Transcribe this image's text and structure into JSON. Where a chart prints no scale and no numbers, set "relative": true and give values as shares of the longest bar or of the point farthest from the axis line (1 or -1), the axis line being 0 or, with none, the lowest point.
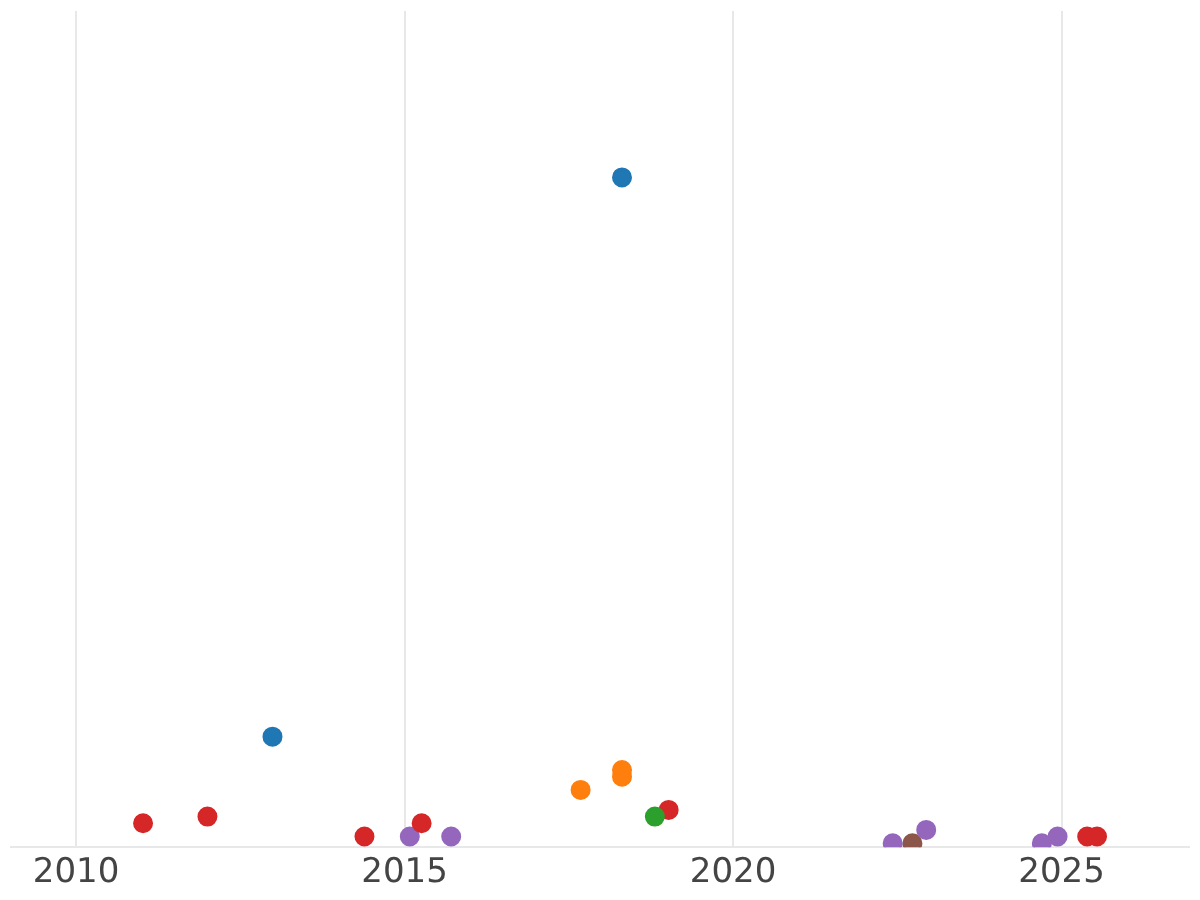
{
  "chart_data": {
    "type": "scatter",
    "relative": true,
    "marker": "circle",
    "grid": "x",
    "legend": false,
    "xlim": [
      2009.01,
      2026.94
    ],
    "xticks": [
      2010,
      2015,
      2020,
      2025
    ],
    "series": [
      {
        "color": "#1f77b4",
        "x": [
          2018.31,
          2012.99
        ],
        "values": [
          1,
          0.16
        ]
      },
      {
        "color": "#ff7f0e",
        "x": [
          2017.68,
          2018.31,
          2018.31
        ],
        "values": [
          0.08,
          0.11,
          0.1
        ]
      },
      {
        "color": "#2ca02c",
        "x": [
          2018.81
        ],
        "values": [
          0.04
        ]
      },
      {
        "color": "#d62728",
        "x": [
          2011.02,
          2012.0,
          2014.39,
          2015.26,
          2019.02,
          2025.39,
          2025.54
        ],
        "values": [
          0.03,
          0.04,
          0.01,
          0.03,
          0.05,
          0.01,
          0.01
        ]
      },
      {
        "color": "#9467bd",
        "x": [
          2015.08,
          2015.71,
          2022.43,
          2022.94,
          2024.7,
          2024.94
        ],
        "values": [
          0.01,
          0.01,
          0,
          0.02,
          0,
          0.01
        ]
      },
      {
        "color": "#8c564b",
        "x": [
          2022.73
        ],
        "values": [
          0
        ]
      }
    ]
  }
}
